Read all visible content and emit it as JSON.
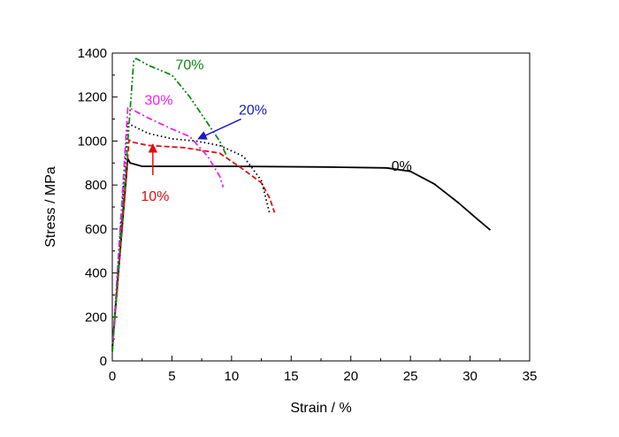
{
  "chart_data": {
    "type": "line",
    "xlabel": "Strain / %",
    "ylabel": "Stress / MPa",
    "xlim": [
      0,
      35
    ],
    "ylim": [
      0,
      1400
    ],
    "x_ticks": [
      "0",
      "5",
      "10",
      "15",
      "20",
      "25",
      "30",
      "35"
    ],
    "y_ticks": [
      "0",
      "200",
      "400",
      "600",
      "800",
      "1000",
      "1200",
      "1400"
    ],
    "grid": false,
    "series": [
      {
        "name": "0%",
        "color": "#000000",
        "dash": "solid",
        "x": [
          0,
          1.3,
          1.5,
          2.5,
          4,
          10,
          18,
          23,
          25,
          27,
          29,
          30.5,
          31.7
        ],
        "y": [
          60,
          920,
          900,
          885,
          885,
          885,
          882,
          878,
          862,
          805,
          720,
          650,
          595
        ],
        "label_at": [
          23.4,
          865
        ],
        "arrow": null
      },
      {
        "name": "10%",
        "color": "#dd1111",
        "dash": "dash",
        "x": [
          0,
          1.4,
          1.7,
          3,
          6,
          9,
          11,
          12.5,
          13.2,
          13.6
        ],
        "y": [
          50,
          1005,
          995,
          980,
          970,
          945,
          870,
          810,
          740,
          675
        ],
        "label_at": [
          2.4,
          728
        ],
        "arrow": {
          "from": [
            3.4,
            845
          ],
          "to": [
            3.4,
            985
          ]
        }
      },
      {
        "name": "20%",
        "color": "#000000",
        "dash": "dot",
        "label_color": "#1a1acc",
        "x": [
          0,
          1.3,
          1.5,
          3,
          5,
          7,
          9,
          11,
          12.5,
          13.2
        ],
        "y": [
          50,
          1080,
          1075,
          1035,
          1010,
          1000,
          980,
          930,
          820,
          670
        ],
        "label_at": [
          10.6,
          1120
        ],
        "arrow": {
          "from": [
            10.8,
            1100
          ],
          "to": [
            7.2,
            1010
          ]
        }
      },
      {
        "name": "30%",
        "color": "#ee22ee",
        "dash": "dashdot",
        "x": [
          0,
          1.3,
          1.6,
          3,
          5,
          6.5,
          8,
          9,
          9.3
        ],
        "y": [
          40,
          1150,
          1145,
          1105,
          1055,
          1020,
          930,
          840,
          790
        ],
        "label_at": [
          2.7,
          1165
        ],
        "arrow": null
      },
      {
        "name": "70%",
        "color": "#118811",
        "dash": "dashdotdot",
        "x": [
          0,
          1.8,
          2.0,
          3,
          5,
          6.5,
          8,
          9,
          9.6
        ],
        "y": [
          40,
          1370,
          1375,
          1345,
          1300,
          1200,
          1080,
          1000,
          930
        ],
        "label_at": [
          5.3,
          1325
        ],
        "arrow": null
      }
    ]
  }
}
